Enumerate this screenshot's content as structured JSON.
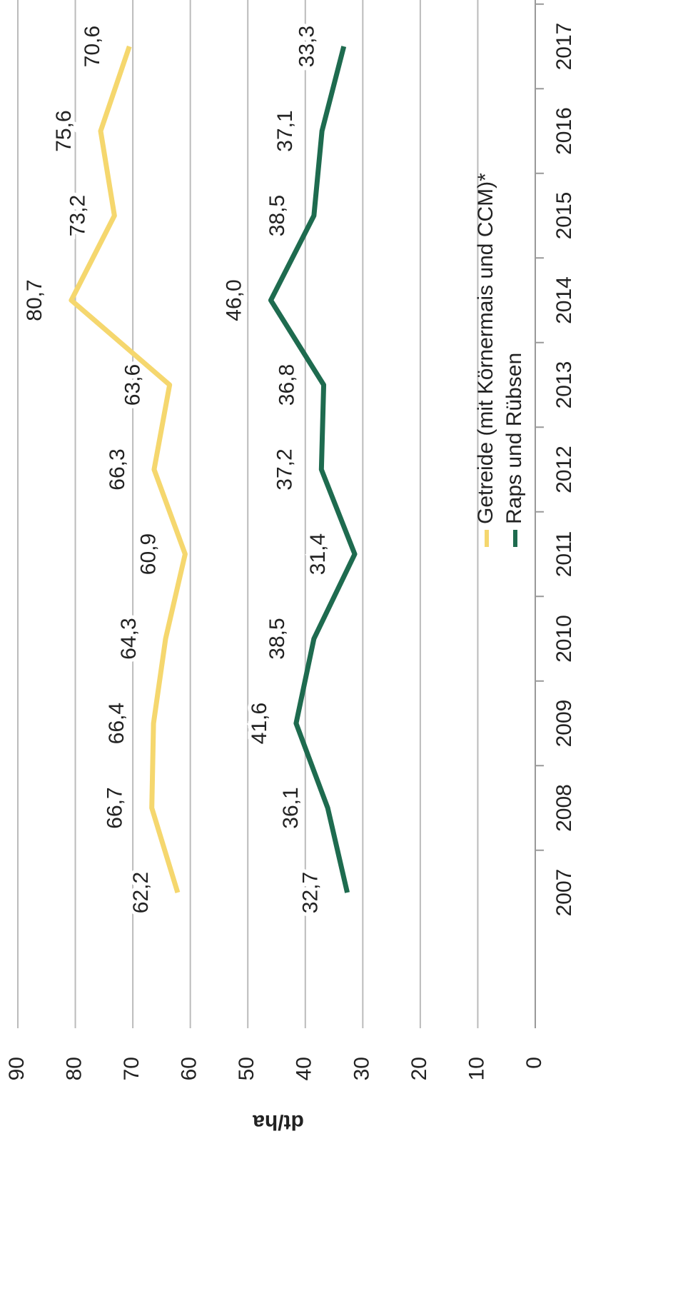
{
  "chart_data": {
    "type": "line",
    "ylabel": "dt/ha",
    "categories": [
      "2007",
      "2008",
      "2009",
      "2010",
      "2011",
      "2012",
      "2013",
      "2014",
      "2015",
      "2016",
      "2017"
    ],
    "series": [
      {
        "name": "Getreide (mit Körnermais und CCM)*",
        "color": "#f5d76e",
        "values": [
          62.2,
          66.7,
          66.4,
          64.3,
          60.9,
          66.3,
          63.6,
          80.7,
          73.2,
          75.6,
          70.6
        ],
        "value_labels": [
          "62,2",
          "66,7",
          "66,4",
          "64,3",
          "60,9",
          "66,3",
          "63,6",
          "80,7",
          "73,2",
          "75,6",
          "70,6"
        ]
      },
      {
        "name": "Raps und Rübsen",
        "color": "#1e6b4f",
        "values": [
          32.7,
          36.1,
          41.6,
          38.5,
          31.4,
          37.2,
          36.8,
          46.0,
          38.5,
          37.1,
          33.3
        ],
        "value_labels": [
          "32,7",
          "36,1",
          "41,6",
          "38,5",
          "31,4",
          "37,2",
          "36,8",
          "46,0",
          "38,5",
          "37,1",
          "33,3"
        ]
      }
    ],
    "ylim": [
      0,
      90
    ],
    "yticks": [
      0,
      10,
      20,
      30,
      40,
      50,
      60,
      70,
      80,
      90
    ],
    "grid": true
  }
}
